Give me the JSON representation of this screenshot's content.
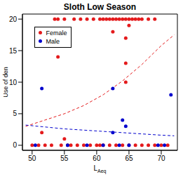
{
  "chart_data": {
    "type": "scatter",
    "title": "Sloth Low Season",
    "x_label": {
      "text": "L",
      "subscript": "Aeq"
    },
    "y_label": "Use of den",
    "xlim": [
      48.5,
      72.5
    ],
    "ylim": [
      -0.8,
      20.8
    ],
    "xticks": [
      50,
      55,
      60,
      65,
      70
    ],
    "yticks": [
      0,
      5,
      10,
      15,
      20
    ],
    "legend": "upper left",
    "series": [
      {
        "name": "Female",
        "color": "#e41a1c",
        "marker": "circle",
        "x": [
          53.5,
          54,
          55,
          56.5,
          57.5,
          58.5,
          59.5,
          60.5,
          61,
          61.5,
          62,
          62.5,
          63,
          63.5,
          64,
          64.5,
          65,
          65.5,
          66,
          66.5,
          67,
          68,
          69,
          62.5,
          65,
          64.5,
          54,
          64.5,
          64.5,
          51.5,
          55,
          50,
          51,
          52,
          53,
          54.5,
          55.5,
          56,
          57,
          58,
          59,
          60,
          60.5,
          61,
          62,
          63,
          64,
          65,
          66,
          67,
          68,
          69,
          70,
          71
        ],
        "values": [
          20,
          20,
          20,
          20,
          20,
          20,
          20,
          20,
          20,
          20,
          20,
          20,
          20,
          20,
          20,
          20,
          20,
          20,
          20,
          20,
          20,
          20,
          20,
          18,
          19,
          17,
          14,
          13,
          10,
          2,
          1,
          0,
          0,
          0,
          0,
          0,
          0,
          0,
          0,
          0,
          0,
          0,
          0,
          0,
          0,
          0,
          0,
          0,
          0,
          0,
          0,
          0,
          0,
          0
        ],
        "fit": {
          "x": [
            49,
            52,
            55,
            58,
            61,
            64,
            67,
            70,
            72
          ],
          "values": [
            3.0,
            4.0,
            5.0,
            6.3,
            8.0,
            10.2,
            12.8,
            15.8,
            17.5
          ],
          "line_style": "dashed"
        }
      },
      {
        "name": "Male",
        "color": "#0000cd",
        "marker": "circle",
        "x": [
          51.5,
          62.5,
          64,
          64.5,
          71.5,
          62.5,
          50.5,
          55.5,
          58.5,
          61,
          63.5,
          65,
          69.5,
          70.5
        ],
        "values": [
          9,
          9,
          4,
          3,
          8,
          2,
          0,
          0,
          0,
          0,
          0,
          0,
          0,
          0
        ],
        "fit": {
          "x": [
            49,
            52,
            55,
            58,
            61,
            64,
            67,
            70,
            72
          ],
          "values": [
            3.2,
            2.9,
            2.6,
            2.4,
            2.2,
            2.0,
            1.8,
            1.6,
            1.5
          ],
          "line_style": "dashed"
        }
      }
    ]
  }
}
